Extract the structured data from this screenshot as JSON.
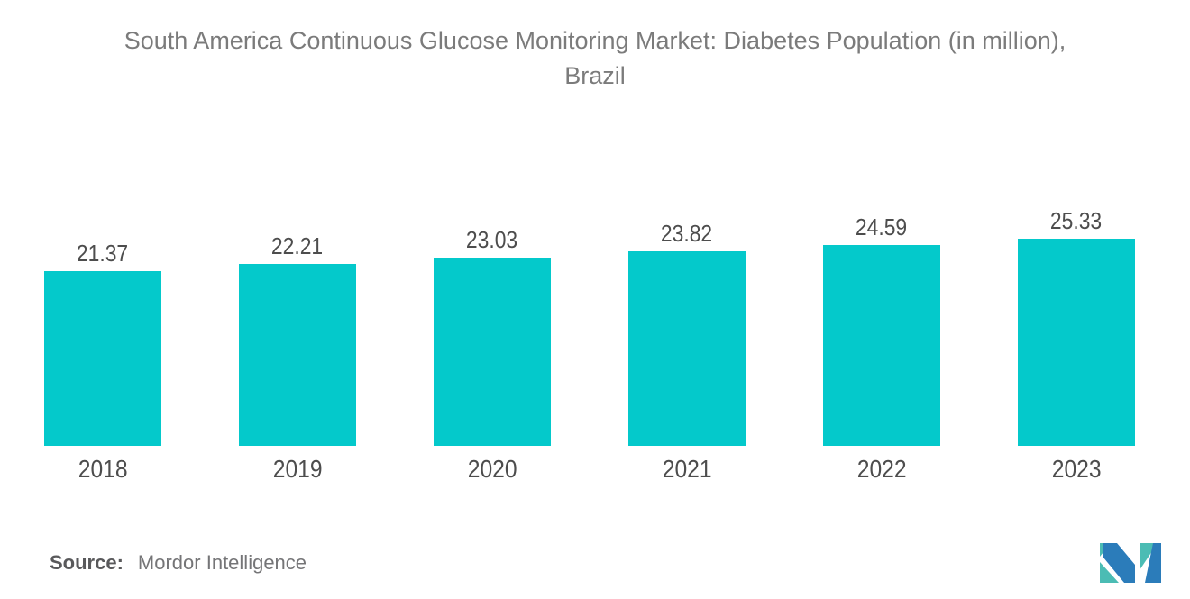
{
  "title": {
    "line1": "South America Continuous Glucose Monitoring Market: Diabetes Population (in million),",
    "line2": "Brazil"
  },
  "chart_data": {
    "type": "bar",
    "categories": [
      "2018",
      "2019",
      "2020",
      "2021",
      "2022",
      "2023"
    ],
    "values": [
      21.37,
      22.21,
      23.03,
      23.82,
      24.59,
      25.33
    ],
    "value_labels": [
      "21.37",
      "22.21",
      "23.03",
      "23.82",
      "24.59",
      "25.33"
    ],
    "title": "South America Continuous Glucose Monitoring Market: Diabetes Population (in million), Brazil",
    "xlabel": "",
    "ylabel": "",
    "ylim": [
      0,
      25.33
    ],
    "grid": false,
    "legend": false,
    "bar_color": "#04c9cb",
    "label_color": "#4d4d4d",
    "title_color": "#7b7b7b"
  },
  "source": {
    "label": "Source:",
    "text": "Mordor Intelligence"
  },
  "logo": {
    "name": "mordor-intelligence-logo",
    "blue": "#2b7cba",
    "teal": "#4bbcb4"
  }
}
